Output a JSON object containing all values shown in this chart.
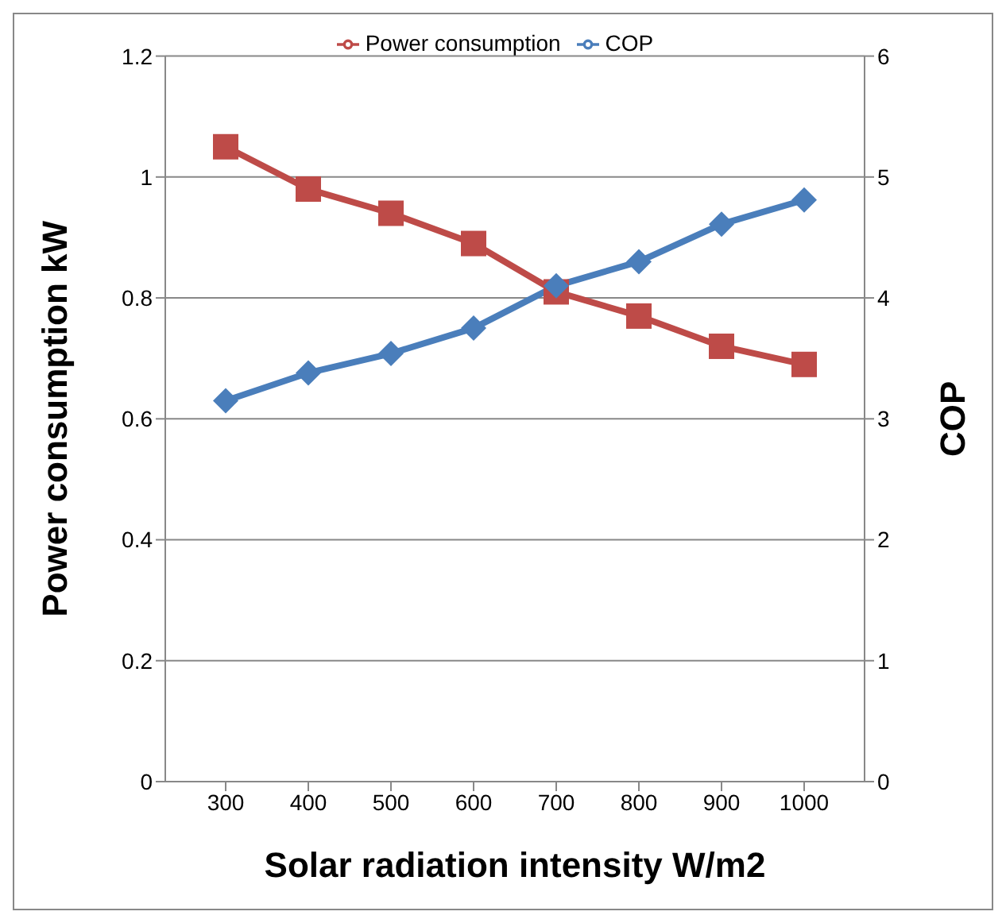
{
  "chart_data": {
    "type": "line",
    "xlabel": "Solar radiation intensity W/m2",
    "ylabel": "Power consumption kW",
    "y2label": "COP",
    "categories": [
      "300",
      "400",
      "500",
      "600",
      "700",
      "800",
      "900",
      "1000"
    ],
    "series": [
      {
        "name": "Power consumption",
        "color": "#be4b48",
        "marker": "square",
        "values": [
          1.05,
          0.98,
          0.94,
          0.89,
          0.81,
          0.77,
          0.72,
          0.69
        ]
      },
      {
        "name": "COP",
        "color": "#4a7ebb",
        "marker": "diamond",
        "axis": "y2",
        "values": [
          3.15,
          3.38,
          3.54,
          3.75,
          4.1,
          4.3,
          4.61,
          4.81
        ]
      }
    ],
    "ylim": [
      0,
      1.2
    ],
    "yticks": [
      0,
      0.2,
      0.4,
      0.6,
      0.8,
      1,
      1.2
    ],
    "y2lim": [
      0,
      6
    ],
    "y2ticks": [
      0,
      1,
      2,
      3,
      4,
      5,
      6
    ],
    "grid": "y",
    "legend": "top"
  }
}
